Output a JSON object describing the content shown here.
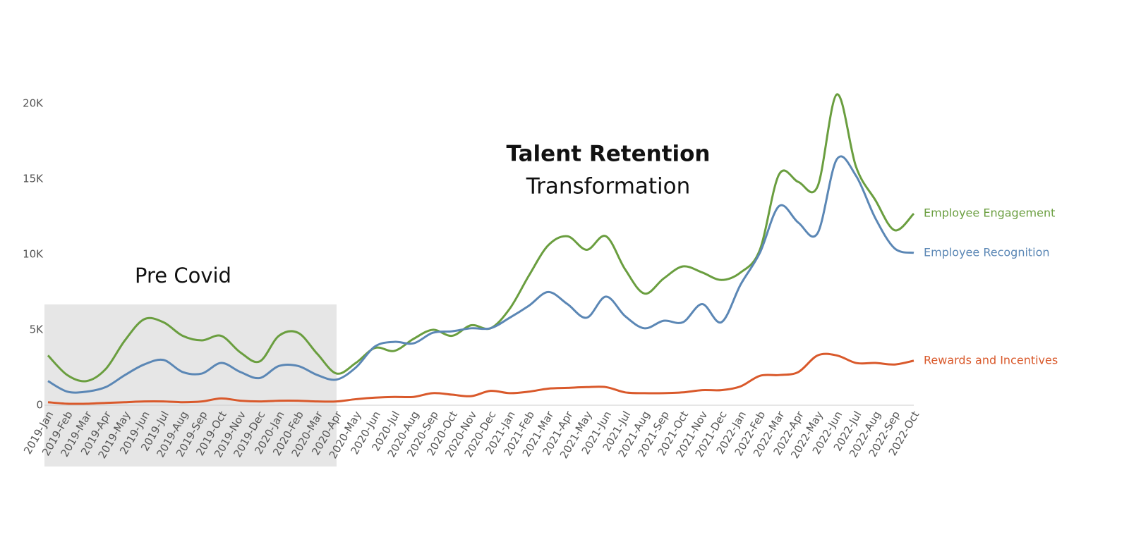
{
  "chart_data": {
    "type": "line",
    "title": "Talent Retention",
    "subtitle": "Transformation",
    "annotation": {
      "label": "Pre Covid",
      "from": "2019-Jan",
      "to": "2020-Apr",
      "color": "#e6e6e6"
    },
    "categories": [
      "2019-Jan",
      "2019-Feb",
      "2019-Mar",
      "2019-Apr",
      "2019-May",
      "2019-Jun",
      "2019-Jul",
      "2019-Aug",
      "2019-Sep",
      "2019-Oct",
      "2019-Nov",
      "2019-Dec",
      "2020-Jan",
      "2020-Feb",
      "2020-Mar",
      "2020-Apr",
      "2020-May",
      "2020-Jun",
      "2020-Jul",
      "2020-Aug",
      "2020-Sep",
      "2020-Oct",
      "2020-Nov",
      "2020-Dec",
      "2021-Jan",
      "2021-Feb",
      "2021-Mar",
      "2021-Apr",
      "2021-May",
      "2021-Jun",
      "2021-Jul",
      "2021-Aug",
      "2021-Sep",
      "2021-Oct",
      "2021-Nov",
      "2021-Dec",
      "2022-Jan",
      "2022-Feb",
      "2022-Mar",
      "2022-Apr",
      "2022-May",
      "2022-Jun",
      "2022-Jul",
      "2022-Aug",
      "2022-Sep",
      "2022-Oct"
    ],
    "series": [
      {
        "name": "Employee Engagement",
        "color": "#6a9e3f",
        "values": [
          3300,
          2000,
          1600,
          2400,
          4300,
          5700,
          5500,
          4600,
          4300,
          4600,
          3500,
          2900,
          4600,
          4800,
          3400,
          2100,
          2800,
          3800,
          3600,
          4400,
          5000,
          4600,
          5300,
          5100,
          6400,
          8600,
          10600,
          11200,
          10300,
          11200,
          9000,
          7400,
          8400,
          9200,
          8800,
          8300,
          8800,
          10300,
          15300,
          14800,
          14500,
          20600,
          15800,
          13600,
          11600,
          12700
        ]
      },
      {
        "name": "Employee Recognition",
        "color": "#5b87b5",
        "values": [
          1600,
          900,
          900,
          1200,
          2000,
          2700,
          3000,
          2200,
          2100,
          2800,
          2200,
          1800,
          2600,
          2600,
          2000,
          1700,
          2500,
          3900,
          4200,
          4100,
          4800,
          4900,
          5100,
          5100,
          5800,
          6600,
          7500,
          6700,
          5800,
          7200,
          5900,
          5100,
          5600,
          5500,
          6700,
          5500,
          8000,
          10100,
          13200,
          12100,
          11400,
          16300,
          15200,
          12400,
          10400,
          10100
        ]
      },
      {
        "name": "Rewards and Incentives",
        "color": "#d9592b",
        "values": [
          200,
          100,
          100,
          150,
          200,
          250,
          250,
          200,
          250,
          450,
          300,
          250,
          300,
          300,
          250,
          250,
          400,
          500,
          550,
          550,
          800,
          700,
          600,
          950,
          800,
          900,
          1100,
          1150,
          1200,
          1200,
          850,
          800,
          800,
          850,
          1000,
          1000,
          1250,
          1950,
          2000,
          2200,
          3300,
          3300,
          2800,
          2800,
          2700,
          2950
        ]
      }
    ],
    "ylim": [
      0,
      22000
    ],
    "yticks": [
      0,
      {
        "value": 5000,
        "label": "5K"
      },
      {
        "value": 10000,
        "label": "10K"
      },
      {
        "value": 15000,
        "label": "15K"
      },
      {
        "value": 20000,
        "label": "20K"
      }
    ],
    "grid": false
  }
}
